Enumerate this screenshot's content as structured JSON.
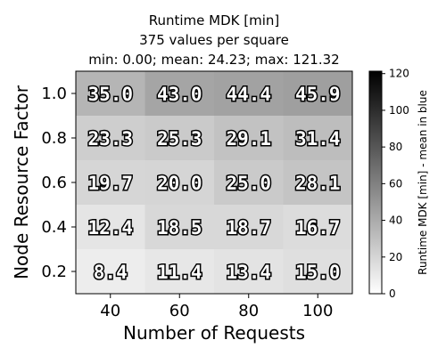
{
  "chart_data": {
    "type": "heatmap",
    "title": "Runtime MDK [min]",
    "subtitle": "375 values per square",
    "stats": "min: 0.00; mean: 24.23; max: 121.32",
    "xlabel": "Number of Requests",
    "ylabel": "Node Resource Factor",
    "x": [
      "40",
      "60",
      "80",
      "100"
    ],
    "y": [
      "0.2",
      "0.4",
      "0.6",
      "0.8",
      "1.0"
    ],
    "values": [
      [
        8.4,
        11.4,
        13.4,
        15.0
      ],
      [
        12.4,
        18.5,
        18.7,
        16.7
      ],
      [
        19.7,
        20.0,
        25.0,
        28.1
      ],
      [
        23.3,
        25.3,
        29.1,
        31.4
      ],
      [
        35.0,
        43.0,
        44.4,
        45.9
      ]
    ],
    "value_labels": [
      [
        "8.4",
        "11.4",
        "13.4",
        "15.0"
      ],
      [
        "12.4",
        "18.5",
        "18.7",
        "16.7"
      ],
      [
        "19.7",
        "20.0",
        "25.0",
        "28.1"
      ],
      [
        "23.3",
        "25.3",
        "29.1",
        "31.4"
      ],
      [
        "35.0",
        "43.0",
        "44.4",
        "45.9"
      ]
    ],
    "colorbar": {
      "label": "Runtime MDK [min] - mean in blue",
      "range": [
        0,
        121.32
      ],
      "ticks": [
        0,
        20,
        40,
        60,
        80,
        100,
        120
      ],
      "tick_labels": [
        "0",
        "20",
        "40",
        "60",
        "80",
        "100",
        "120"
      ],
      "colormap": "greys"
    }
  }
}
